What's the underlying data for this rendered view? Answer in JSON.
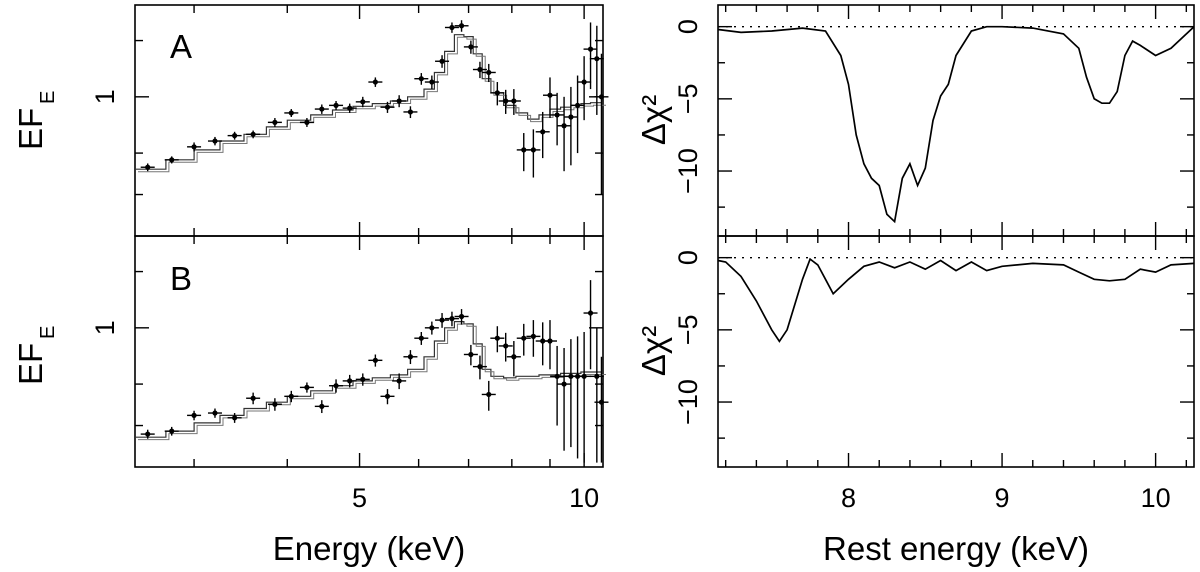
{
  "chart_data": [
    {
      "id": "A",
      "type": "scatter",
      "panel_label": "A",
      "ylabel_main": "EF",
      "ylabel_sub": "E",
      "xlabel": "Energy (keV)",
      "xscale": "log",
      "xlim": [
        2.5,
        10.6
      ],
      "yscale": "log",
      "ylim": [
        0.18,
        3.1
      ],
      "xticks": [
        5,
        10
      ],
      "xtick_labels": [
        "5",
        "10"
      ],
      "yticks": [
        1
      ],
      "ytick_labels": [
        "1"
      ],
      "points": [
        {
          "x": 2.6,
          "y": 0.42,
          "err": 0.02
        },
        {
          "x": 2.8,
          "y": 0.46,
          "err": 0.02
        },
        {
          "x": 3.0,
          "y": 0.54,
          "err": 0.03
        },
        {
          "x": 3.2,
          "y": 0.58,
          "err": 0.03
        },
        {
          "x": 3.4,
          "y": 0.62,
          "err": 0.03
        },
        {
          "x": 3.6,
          "y": 0.63,
          "err": 0.03
        },
        {
          "x": 3.85,
          "y": 0.73,
          "err": 0.04
        },
        {
          "x": 4.05,
          "y": 0.82,
          "err": 0.04
        },
        {
          "x": 4.25,
          "y": 0.73,
          "err": 0.04
        },
        {
          "x": 4.45,
          "y": 0.86,
          "err": 0.05
        },
        {
          "x": 4.65,
          "y": 0.9,
          "err": 0.05
        },
        {
          "x": 4.85,
          "y": 0.87,
          "err": 0.05
        },
        {
          "x": 5.05,
          "y": 0.94,
          "err": 0.06
        },
        {
          "x": 5.25,
          "y": 1.2,
          "err": 0.07
        },
        {
          "x": 5.45,
          "y": 0.88,
          "err": 0.06
        },
        {
          "x": 5.65,
          "y": 0.95,
          "err": 0.07
        },
        {
          "x": 5.85,
          "y": 0.83,
          "err": 0.06
        },
        {
          "x": 6.05,
          "y": 1.25,
          "err": 0.09
        },
        {
          "x": 6.25,
          "y": 1.2,
          "err": 0.1
        },
        {
          "x": 6.45,
          "y": 1.55,
          "err": 0.12
        },
        {
          "x": 6.65,
          "y": 2.35,
          "err": 0.15
        },
        {
          "x": 6.85,
          "y": 2.4,
          "err": 0.17
        },
        {
          "x": 7.05,
          "y": 1.85,
          "err": 0.15
        },
        {
          "x": 7.25,
          "y": 1.4,
          "err": 0.14
        },
        {
          "x": 7.45,
          "y": 1.35,
          "err": 0.15
        },
        {
          "x": 7.65,
          "y": 1.05,
          "err": 0.15
        },
        {
          "x": 7.85,
          "y": 0.95,
          "err": 0.14
        },
        {
          "x": 8.05,
          "y": 0.95,
          "err": 0.15
        },
        {
          "x": 8.3,
          "y": 0.52,
          "err": 0.12
        },
        {
          "x": 8.55,
          "y": 0.52,
          "err": 0.15
        },
        {
          "x": 8.8,
          "y": 0.65,
          "err": 0.18
        },
        {
          "x": 9.0,
          "y": 1.02,
          "err": 0.25
        },
        {
          "x": 9.2,
          "y": 0.8,
          "err": 0.25
        },
        {
          "x": 9.4,
          "y": 0.7,
          "err": 0.3
        },
        {
          "x": 9.6,
          "y": 0.78,
          "err": 0.35
        },
        {
          "x": 9.8,
          "y": 0.9,
          "err": 0.4
        },
        {
          "x": 10.0,
          "y": 1.2,
          "err": 0.45
        },
        {
          "x": 10.2,
          "y": 1.8,
          "err": 0.7
        },
        {
          "x": 10.4,
          "y": 1.6,
          "err": 0.8
        },
        {
          "x": 10.55,
          "y": 1.0,
          "err": 0.7
        }
      ],
      "model_steps": [
        [
          2.5,
          0.41
        ],
        [
          2.75,
          0.46
        ],
        [
          3.0,
          0.52
        ],
        [
          3.25,
          0.58
        ],
        [
          3.5,
          0.63
        ],
        [
          3.75,
          0.69
        ],
        [
          4.0,
          0.75
        ],
        [
          4.3,
          0.8
        ],
        [
          4.6,
          0.85
        ],
        [
          4.9,
          0.89
        ],
        [
          5.2,
          0.92
        ],
        [
          5.5,
          0.95
        ],
        [
          5.8,
          1.0
        ],
        [
          6.1,
          1.1
        ],
        [
          6.3,
          1.35
        ],
        [
          6.5,
          1.75
        ],
        [
          6.7,
          2.15
        ],
        [
          6.9,
          2.1
        ],
        [
          7.1,
          1.7
        ],
        [
          7.3,
          1.25
        ],
        [
          7.5,
          1.05
        ],
        [
          7.8,
          0.9
        ],
        [
          8.1,
          0.82
        ],
        [
          8.4,
          0.76
        ],
        [
          8.7,
          0.8
        ],
        [
          9.0,
          0.86
        ],
        [
          9.3,
          0.88
        ],
        [
          9.6,
          0.9
        ],
        [
          9.9,
          0.92
        ],
        [
          10.2,
          0.93
        ]
      ]
    },
    {
      "id": "B",
      "type": "scatter",
      "panel_label": "B",
      "ylabel_main": "EF",
      "ylabel_sub": "E",
      "xlabel": "Energy (keV)",
      "xscale": "log",
      "xlim": [
        2.5,
        10.6
      ],
      "yscale": "log",
      "ylim": [
        0.18,
        3.1
      ],
      "xticks": [
        5,
        10
      ],
      "xtick_labels": [
        "5",
        "10"
      ],
      "yticks": [
        1
      ],
      "ytick_labels": [
        "1"
      ],
      "points": [
        {
          "x": 2.6,
          "y": 0.27,
          "err": 0.015
        },
        {
          "x": 2.8,
          "y": 0.28,
          "err": 0.015
        },
        {
          "x": 3.0,
          "y": 0.34,
          "err": 0.02
        },
        {
          "x": 3.2,
          "y": 0.35,
          "err": 0.02
        },
        {
          "x": 3.4,
          "y": 0.33,
          "err": 0.02
        },
        {
          "x": 3.6,
          "y": 0.42,
          "err": 0.03
        },
        {
          "x": 3.85,
          "y": 0.39,
          "err": 0.03
        },
        {
          "x": 4.05,
          "y": 0.43,
          "err": 0.03
        },
        {
          "x": 4.25,
          "y": 0.48,
          "err": 0.03
        },
        {
          "x": 4.45,
          "y": 0.38,
          "err": 0.03
        },
        {
          "x": 4.65,
          "y": 0.49,
          "err": 0.04
        },
        {
          "x": 4.85,
          "y": 0.52,
          "err": 0.04
        },
        {
          "x": 5.05,
          "y": 0.53,
          "err": 0.04
        },
        {
          "x": 5.25,
          "y": 0.67,
          "err": 0.05
        },
        {
          "x": 5.45,
          "y": 0.43,
          "err": 0.04
        },
        {
          "x": 5.65,
          "y": 0.52,
          "err": 0.05
        },
        {
          "x": 5.85,
          "y": 0.7,
          "err": 0.06
        },
        {
          "x": 6.05,
          "y": 0.88,
          "err": 0.07
        },
        {
          "x": 6.25,
          "y": 1.0,
          "err": 0.08
        },
        {
          "x": 6.45,
          "y": 1.1,
          "err": 0.1
        },
        {
          "x": 6.65,
          "y": 1.12,
          "err": 0.1
        },
        {
          "x": 6.85,
          "y": 1.15,
          "err": 0.11
        },
        {
          "x": 7.05,
          "y": 0.72,
          "err": 0.09
        },
        {
          "x": 7.25,
          "y": 0.62,
          "err": 0.09
        },
        {
          "x": 7.45,
          "y": 0.44,
          "err": 0.08
        },
        {
          "x": 7.65,
          "y": 0.88,
          "err": 0.14
        },
        {
          "x": 7.85,
          "y": 0.8,
          "err": 0.14
        },
        {
          "x": 8.05,
          "y": 0.7,
          "err": 0.15
        },
        {
          "x": 8.3,
          "y": 0.88,
          "err": 0.17
        },
        {
          "x": 8.55,
          "y": 0.9,
          "err": 0.2
        },
        {
          "x": 8.8,
          "y": 0.85,
          "err": 0.22
        },
        {
          "x": 9.0,
          "y": 0.85,
          "err": 0.25
        },
        {
          "x": 9.2,
          "y": 0.55,
          "err": 0.25
        },
        {
          "x": 9.4,
          "y": 0.5,
          "err": 0.28
        },
        {
          "x": 9.6,
          "y": 0.55,
          "err": 0.32
        },
        {
          "x": 9.8,
          "y": 0.55,
          "err": 0.35
        },
        {
          "x": 10.0,
          "y": 0.55,
          "err": 0.4
        },
        {
          "x": 10.2,
          "y": 1.2,
          "err": 0.6
        },
        {
          "x": 10.4,
          "y": 0.55,
          "err": 0.45
        },
        {
          "x": 10.55,
          "y": 0.4,
          "err": 0.3
        }
      ],
      "model_steps": [
        [
          2.5,
          0.26
        ],
        [
          2.75,
          0.28
        ],
        [
          3.0,
          0.31
        ],
        [
          3.25,
          0.34
        ],
        [
          3.5,
          0.37
        ],
        [
          3.75,
          0.4
        ],
        [
          4.0,
          0.43
        ],
        [
          4.3,
          0.46
        ],
        [
          4.6,
          0.49
        ],
        [
          4.9,
          0.52
        ],
        [
          5.2,
          0.54
        ],
        [
          5.5,
          0.56
        ],
        [
          5.8,
          0.6
        ],
        [
          6.1,
          0.7
        ],
        [
          6.3,
          0.85
        ],
        [
          6.5,
          1.0
        ],
        [
          6.7,
          1.08
        ],
        [
          6.9,
          1.05
        ],
        [
          7.1,
          0.82
        ],
        [
          7.3,
          0.6
        ],
        [
          7.5,
          0.55
        ],
        [
          7.8,
          0.54
        ],
        [
          8.1,
          0.55
        ],
        [
          8.4,
          0.55
        ],
        [
          8.7,
          0.56
        ],
        [
          9.0,
          0.56
        ],
        [
          9.3,
          0.57
        ],
        [
          9.6,
          0.57
        ],
        [
          9.9,
          0.58
        ],
        [
          10.2,
          0.58
        ]
      ]
    },
    {
      "id": "A-chi",
      "type": "line",
      "ylabel": "Δχ²",
      "xlabel": "Rest energy (keV)",
      "xlim": [
        7.15,
        10.25
      ],
      "ylim": [
        -14.5,
        1.5
      ],
      "xticks": [
        8,
        9,
        10
      ],
      "xtick_labels": [
        "8",
        "9",
        "10"
      ],
      "yticks": [
        0,
        -5,
        -10
      ],
      "ytick_labels": [
        "0",
        "−5",
        "−10"
      ],
      "reference_line": 0,
      "x": [
        7.15,
        7.3,
        7.5,
        7.7,
        7.85,
        7.95,
        8.0,
        8.05,
        8.1,
        8.15,
        8.2,
        8.25,
        8.3,
        8.35,
        8.4,
        8.45,
        8.5,
        8.55,
        8.6,
        8.65,
        8.7,
        8.8,
        8.9,
        9.0,
        9.2,
        9.4,
        9.5,
        9.55,
        9.6,
        9.65,
        9.7,
        9.75,
        9.8,
        9.85,
        9.9,
        10.0,
        10.1,
        10.25
      ],
      "y": [
        -0.2,
        -0.4,
        -0.3,
        -0.1,
        -0.3,
        -2.0,
        -4.0,
        -7.5,
        -9.5,
        -10.5,
        -11.0,
        -13.0,
        -13.5,
        -10.5,
        -9.5,
        -11.0,
        -9.8,
        -6.5,
        -4.8,
        -4.0,
        -2.0,
        -0.3,
        0.0,
        0.0,
        -0.1,
        -0.5,
        -1.5,
        -3.5,
        -5.0,
        -5.3,
        -5.3,
        -4.5,
        -2.0,
        -1.0,
        -1.3,
        -2.0,
        -1.5,
        0.0
      ]
    },
    {
      "id": "B-chi",
      "type": "line",
      "ylabel": "Δχ²",
      "xlabel": "Rest energy (keV)",
      "xlim": [
        7.15,
        10.25
      ],
      "ylim": [
        -14.5,
        1.5
      ],
      "xticks": [
        8,
        9,
        10
      ],
      "xtick_labels": [
        "8",
        "9",
        "10"
      ],
      "yticks": [
        0,
        -5,
        -10
      ],
      "ytick_labels": [
        "0",
        "−5",
        "−10"
      ],
      "reference_line": 0,
      "x": [
        7.15,
        7.2,
        7.3,
        7.4,
        7.5,
        7.55,
        7.6,
        7.7,
        7.75,
        7.8,
        7.85,
        7.9,
        8.0,
        8.1,
        8.2,
        8.3,
        8.4,
        8.5,
        8.6,
        8.7,
        8.8,
        8.9,
        9.0,
        9.2,
        9.4,
        9.5,
        9.6,
        9.7,
        9.8,
        9.9,
        10.0,
        10.1,
        10.25
      ],
      "y": [
        -0.2,
        -0.3,
        -1.3,
        -3.0,
        -5.0,
        -5.8,
        -5.0,
        -1.5,
        -0.1,
        -0.5,
        -1.5,
        -2.5,
        -1.5,
        -0.6,
        -0.3,
        -0.7,
        -0.3,
        -0.8,
        -0.2,
        -0.9,
        -0.3,
        -0.9,
        -0.6,
        -0.4,
        -0.5,
        -1.0,
        -1.5,
        -1.6,
        -1.5,
        -0.8,
        -1.0,
        -0.5,
        -0.4
      ]
    }
  ]
}
